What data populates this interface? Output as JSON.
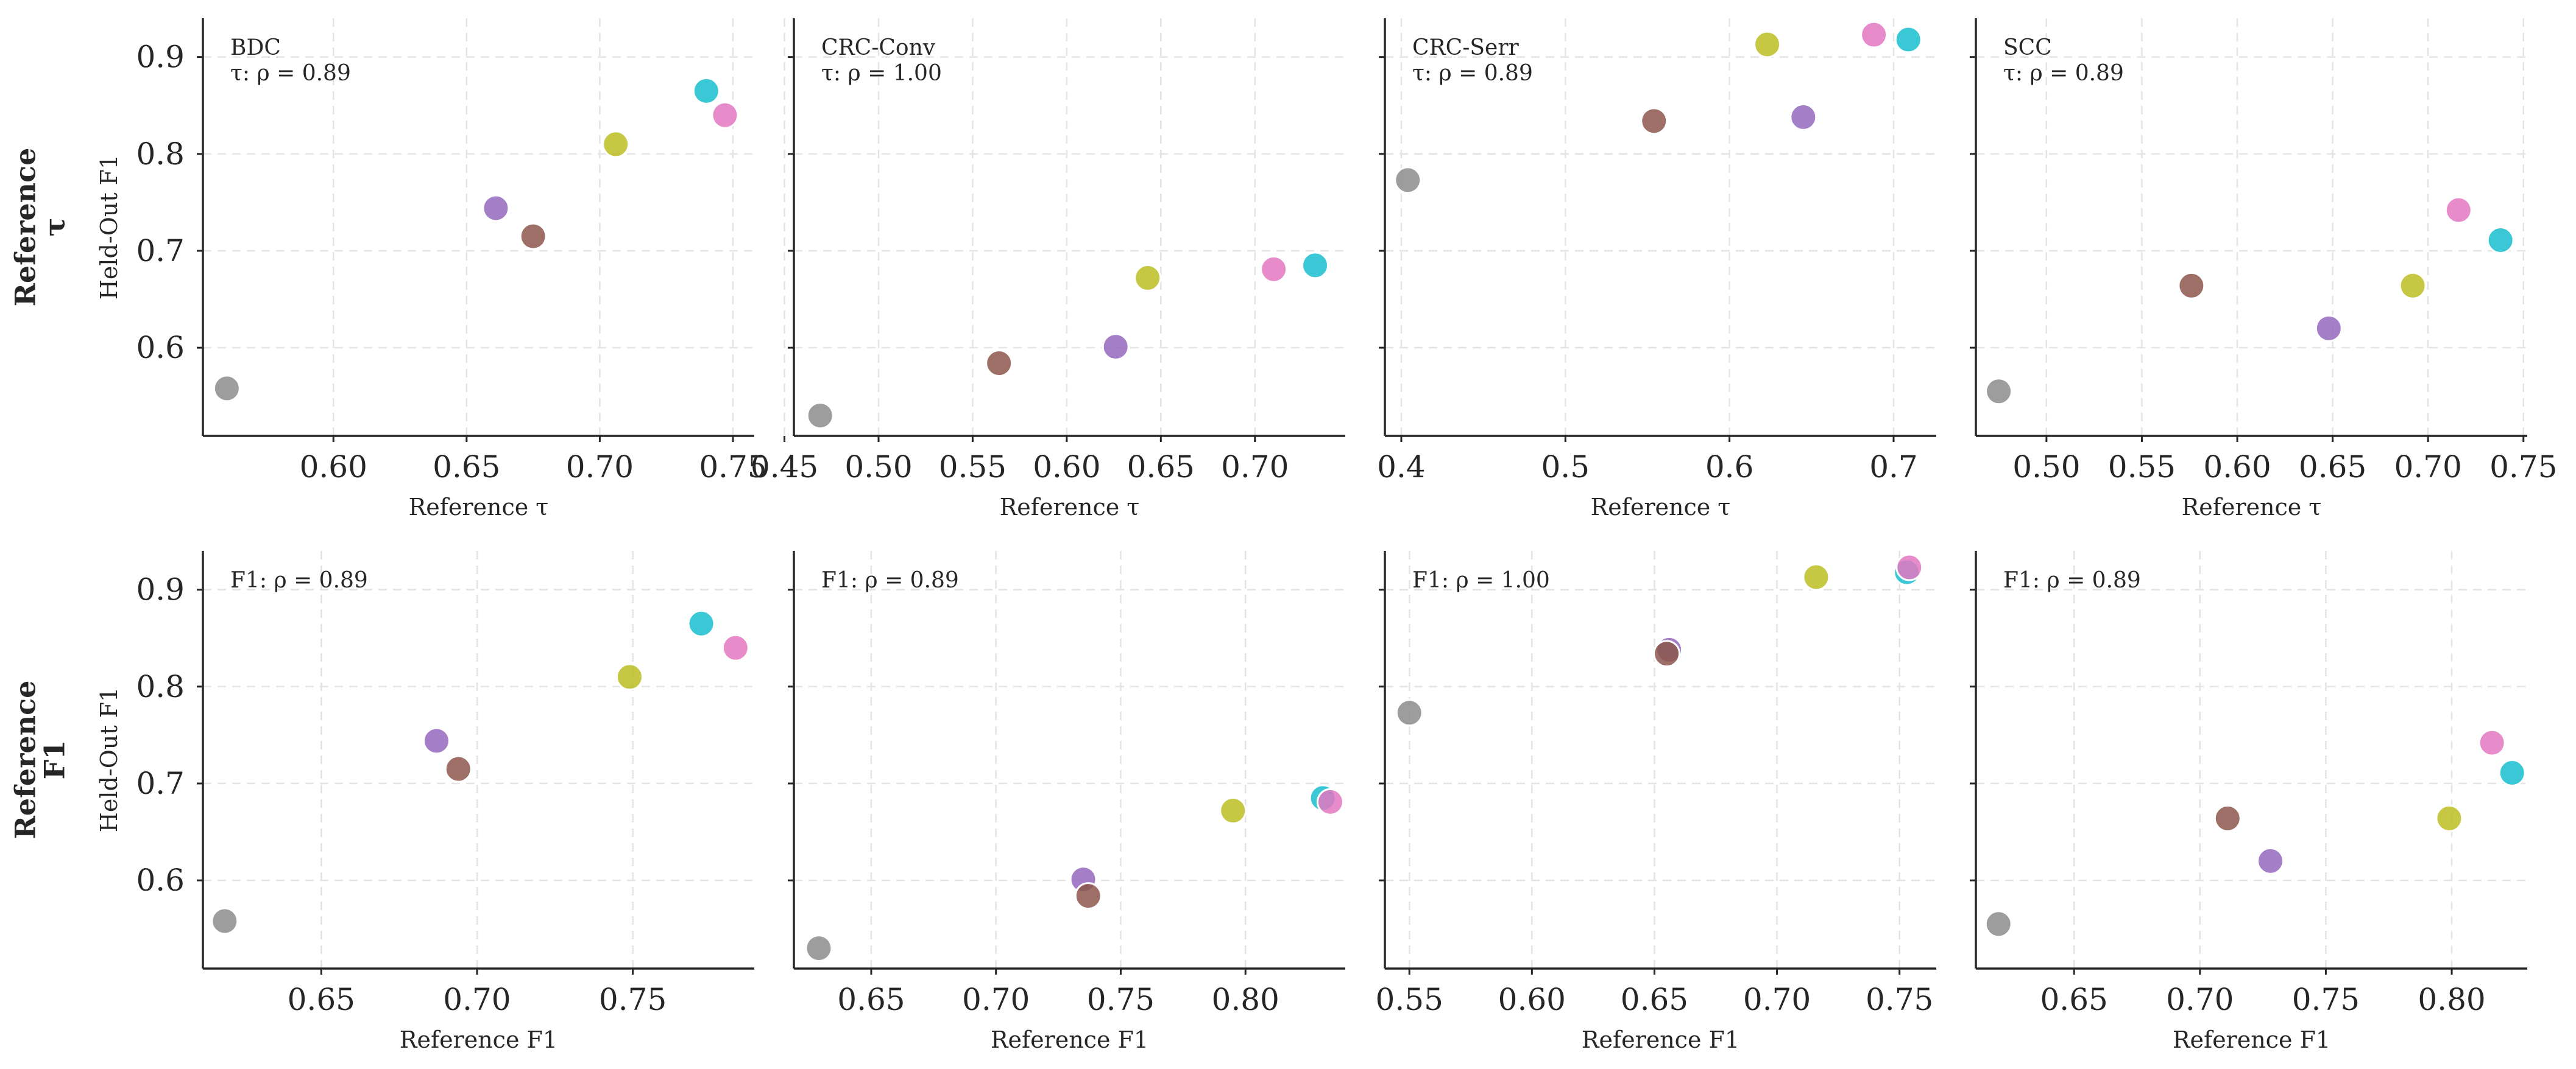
{
  "colors": {
    "gray": "#8c8c8c",
    "brown": "#8c564b",
    "purple": "#9467bd",
    "olive": "#bcbd22",
    "pink": "#e377c2",
    "cyan": "#17becf"
  },
  "row_labels": [
    {
      "label": "Reference\nτ",
      "ylabel": "Held-Out F1"
    },
    {
      "label": "Reference\nF1",
      "ylabel": "Held-Out F1"
    }
  ],
  "chart_data": [
    {
      "type": "scatter",
      "title": "BDC",
      "annotation": "τ: ρ = 0.89",
      "xlabel": "Reference τ",
      "ylabel": "Held-Out F1",
      "xlim": [
        0.551,
        0.758
      ],
      "ylim": [
        0.509,
        0.94
      ],
      "xticks": [
        0.6,
        0.65,
        0.7,
        0.75
      ],
      "xtick_labels": [
        "0.60",
        "0.65",
        "0.70",
        "0.75"
      ],
      "yticks": [
        0.6,
        0.7,
        0.8,
        0.9
      ],
      "ytick_labels": [
        "0.6",
        "0.7",
        "0.8",
        "0.9"
      ],
      "points": [
        {
          "color": "gray",
          "x": 0.56,
          "y": 0.558
        },
        {
          "color": "purple",
          "x": 0.661,
          "y": 0.744
        },
        {
          "color": "brown",
          "x": 0.675,
          "y": 0.715
        },
        {
          "color": "olive",
          "x": 0.706,
          "y": 0.81
        },
        {
          "color": "cyan",
          "x": 0.74,
          "y": 0.865
        },
        {
          "color": "pink",
          "x": 0.747,
          "y": 0.84
        }
      ]
    },
    {
      "type": "scatter",
      "title": "CRC-Conv",
      "annotation": "τ: ρ = 1.00",
      "xlabel": "Reference τ",
      "ylabel": "",
      "xlim": [
        0.455,
        0.748
      ],
      "ylim": [
        0.509,
        0.94
      ],
      "xticks": [
        0.45,
        0.5,
        0.55,
        0.6,
        0.65,
        0.7
      ],
      "xtick_labels": [
        "0.45",
        "0.50",
        "0.55",
        "0.60",
        "0.65",
        "0.70"
      ],
      "yticks": [
        0.6,
        0.7,
        0.8,
        0.9
      ],
      "ytick_labels": [
        "",
        "",
        "",
        ""
      ],
      "points": [
        {
          "color": "gray",
          "x": 0.469,
          "y": 0.53
        },
        {
          "color": "brown",
          "x": 0.564,
          "y": 0.584
        },
        {
          "color": "purple",
          "x": 0.626,
          "y": 0.601
        },
        {
          "color": "olive",
          "x": 0.643,
          "y": 0.672
        },
        {
          "color": "pink",
          "x": 0.71,
          "y": 0.681
        },
        {
          "color": "cyan",
          "x": 0.732,
          "y": 0.685
        }
      ]
    },
    {
      "type": "scatter",
      "title": "CRC-Serr",
      "annotation": "τ: ρ = 0.89",
      "xlabel": "Reference τ",
      "ylabel": "",
      "xlim": [
        0.39,
        0.726
      ],
      "ylim": [
        0.509,
        0.94
      ],
      "xticks": [
        0.4,
        0.5,
        0.6,
        0.7
      ],
      "xtick_labels": [
        "0.4",
        "0.5",
        "0.6",
        "0.7"
      ],
      "yticks": [
        0.6,
        0.7,
        0.8,
        0.9
      ],
      "ytick_labels": [
        "",
        "",
        "",
        ""
      ],
      "points": [
        {
          "color": "gray",
          "x": 0.404,
          "y": 0.773
        },
        {
          "color": "brown",
          "x": 0.554,
          "y": 0.834
        },
        {
          "color": "olive",
          "x": 0.623,
          "y": 0.913
        },
        {
          "color": "purple",
          "x": 0.645,
          "y": 0.838
        },
        {
          "color": "pink",
          "x": 0.688,
          "y": 0.923
        },
        {
          "color": "cyan",
          "x": 0.709,
          "y": 0.918
        }
      ]
    },
    {
      "type": "scatter",
      "title": "SCC",
      "annotation": "τ: ρ = 0.89",
      "xlabel": "Reference τ",
      "ylabel": "",
      "xlim": [
        0.463,
        0.752
      ],
      "ylim": [
        0.509,
        0.94
      ],
      "xticks": [
        0.5,
        0.55,
        0.6,
        0.65,
        0.7,
        0.75
      ],
      "xtick_labels": [
        "0.50",
        "0.55",
        "0.60",
        "0.65",
        "0.70",
        "0.75"
      ],
      "yticks": [
        0.6,
        0.7,
        0.8,
        0.9
      ],
      "ytick_labels": [
        "",
        "",
        "",
        ""
      ],
      "points": [
        {
          "color": "gray",
          "x": 0.475,
          "y": 0.555
        },
        {
          "color": "brown",
          "x": 0.576,
          "y": 0.664
        },
        {
          "color": "purple",
          "x": 0.648,
          "y": 0.62
        },
        {
          "color": "olive",
          "x": 0.692,
          "y": 0.664
        },
        {
          "color": "pink",
          "x": 0.716,
          "y": 0.742
        },
        {
          "color": "cyan",
          "x": 0.738,
          "y": 0.711
        }
      ]
    },
    {
      "type": "scatter",
      "title": "",
      "annotation": "F1: ρ = 0.89",
      "xlabel": "Reference F1",
      "ylabel": "Held-Out F1",
      "xlim": [
        0.612,
        0.789
      ],
      "ylim": [
        0.509,
        0.94
      ],
      "xticks": [
        0.65,
        0.7,
        0.75
      ],
      "xtick_labels": [
        "0.65",
        "0.70",
        "0.75"
      ],
      "yticks": [
        0.6,
        0.7,
        0.8,
        0.9
      ],
      "ytick_labels": [
        "0.6",
        "0.7",
        "0.8",
        "0.9"
      ],
      "points": [
        {
          "color": "gray",
          "x": 0.619,
          "y": 0.558
        },
        {
          "color": "purple",
          "x": 0.687,
          "y": 0.744
        },
        {
          "color": "brown",
          "x": 0.694,
          "y": 0.715
        },
        {
          "color": "olive",
          "x": 0.749,
          "y": 0.81
        },
        {
          "color": "cyan",
          "x": 0.772,
          "y": 0.865
        },
        {
          "color": "pink",
          "x": 0.783,
          "y": 0.84
        }
      ]
    },
    {
      "type": "scatter",
      "title": "",
      "annotation": "F1: ρ = 0.89",
      "xlabel": "Reference F1",
      "ylabel": "",
      "xlim": [
        0.619,
        0.84
      ],
      "ylim": [
        0.509,
        0.94
      ],
      "xticks": [
        0.65,
        0.7,
        0.75,
        0.8
      ],
      "xtick_labels": [
        "0.65",
        "0.70",
        "0.75",
        "0.80"
      ],
      "yticks": [
        0.6,
        0.7,
        0.8,
        0.9
      ],
      "ytick_labels": [
        "",
        "",
        "",
        ""
      ],
      "points": [
        {
          "color": "gray",
          "x": 0.629,
          "y": 0.53
        },
        {
          "color": "purple",
          "x": 0.735,
          "y": 0.601
        },
        {
          "color": "brown",
          "x": 0.737,
          "y": 0.584
        },
        {
          "color": "olive",
          "x": 0.795,
          "y": 0.672
        },
        {
          "color": "cyan",
          "x": 0.831,
          "y": 0.685
        },
        {
          "color": "pink",
          "x": 0.834,
          "y": 0.681
        }
      ]
    },
    {
      "type": "scatter",
      "title": "",
      "annotation": "F1: ρ = 1.00",
      "xlabel": "Reference F1",
      "ylabel": "",
      "xlim": [
        0.54,
        0.765
      ],
      "ylim": [
        0.509,
        0.94
      ],
      "xticks": [
        0.55,
        0.6,
        0.65,
        0.7,
        0.75
      ],
      "xtick_labels": [
        "0.55",
        "0.60",
        "0.65",
        "0.70",
        "0.75"
      ],
      "yticks": [
        0.6,
        0.7,
        0.8,
        0.9
      ],
      "ytick_labels": [
        "",
        "",
        "",
        ""
      ],
      "points": [
        {
          "color": "gray",
          "x": 0.55,
          "y": 0.773
        },
        {
          "color": "purple",
          "x": 0.656,
          "y": 0.838
        },
        {
          "color": "brown",
          "x": 0.655,
          "y": 0.834
        },
        {
          "color": "olive",
          "x": 0.716,
          "y": 0.913
        },
        {
          "color": "cyan",
          "x": 0.753,
          "y": 0.918
        },
        {
          "color": "pink",
          "x": 0.754,
          "y": 0.923
        }
      ]
    },
    {
      "type": "scatter",
      "title": "",
      "annotation": "F1: ρ = 0.89",
      "xlabel": "Reference F1",
      "ylabel": "",
      "xlim": [
        0.611,
        0.83
      ],
      "ylim": [
        0.509,
        0.94
      ],
      "xticks": [
        0.65,
        0.7,
        0.75,
        0.8
      ],
      "xtick_labels": [
        "0.65",
        "0.70",
        "0.75",
        "0.80"
      ],
      "yticks": [
        0.6,
        0.7,
        0.8,
        0.9
      ],
      "ytick_labels": [
        "",
        "",
        "",
        ""
      ],
      "points": [
        {
          "color": "gray",
          "x": 0.62,
          "y": 0.555
        },
        {
          "color": "brown",
          "x": 0.711,
          "y": 0.664
        },
        {
          "color": "purple",
          "x": 0.728,
          "y": 0.62
        },
        {
          "color": "olive",
          "x": 0.799,
          "y": 0.664
        },
        {
          "color": "pink",
          "x": 0.816,
          "y": 0.742
        },
        {
          "color": "cyan",
          "x": 0.824,
          "y": 0.711
        }
      ]
    }
  ]
}
